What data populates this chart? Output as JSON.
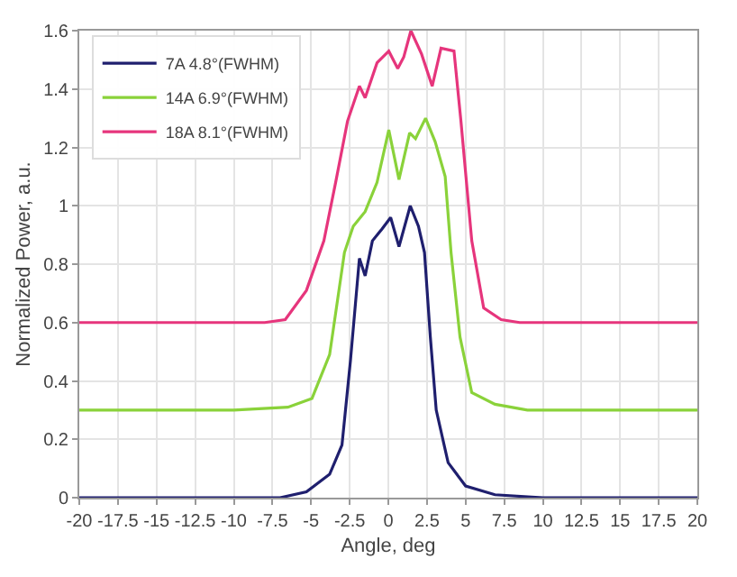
{
  "chart_data": {
    "type": "line",
    "xlabel": "Angle, deg",
    "ylabel": "Normalized Power, a.u.",
    "xlim": [
      -20,
      20
    ],
    "ylim": [
      0,
      1.6
    ],
    "xticks": [
      -20,
      -17.5,
      -15,
      -12.5,
      -10,
      -7.5,
      -5,
      -2.5,
      0,
      2.5,
      5,
      7.5,
      10,
      12.5,
      15,
      17.5,
      20
    ],
    "yticks": [
      0,
      0.2,
      0.4,
      0.6,
      0.8,
      1,
      1.2,
      1.4,
      1.6
    ],
    "grid": true,
    "legend": "top left",
    "marker": "none",
    "line_style": "solid",
    "series": [
      {
        "name": "7A 4.8°(FWHM)",
        "color": "#1f1f6e",
        "x": [
          -20,
          -10,
          -7,
          -5.3,
          -3.8,
          -3.0,
          -2.45,
          -1.87,
          -1.5,
          -1.03,
          -0.42,
          0.15,
          0.69,
          1.42,
          1.95,
          2.34,
          2.72,
          3.1,
          3.87,
          5.0,
          6.9,
          10,
          20
        ],
        "values": [
          0,
          0,
          0,
          0.02,
          0.08,
          0.18,
          0.47,
          0.82,
          0.76,
          0.88,
          0.92,
          0.96,
          0.86,
          1.0,
          0.93,
          0.84,
          0.55,
          0.3,
          0.12,
          0.04,
          0.01,
          0,
          0
        ]
      },
      {
        "name": "14A 6.9°(FWHM)",
        "color": "#8ad23a",
        "x": [
          -20,
          -10,
          -6.5,
          -4.94,
          -3.8,
          -2.84,
          -2.27,
          -1.5,
          -0.73,
          0.03,
          0.69,
          1.38,
          1.76,
          2.41,
          3.03,
          3.68,
          4.06,
          4.64,
          5.4,
          6.9,
          9,
          20
        ],
        "values": [
          0.3,
          0.3,
          0.31,
          0.34,
          0.49,
          0.84,
          0.93,
          0.98,
          1.08,
          1.26,
          1.09,
          1.25,
          1.23,
          1.3,
          1.22,
          1.1,
          0.84,
          0.55,
          0.36,
          0.32,
          0.3,
          0.3
        ]
      },
      {
        "name": "18A 8.1°(FWHM)",
        "color": "#e6357c",
        "x": [
          -20,
          -8,
          -6.67,
          -5.3,
          -4.17,
          -3.41,
          -2.64,
          -1.87,
          -1.5,
          -0.73,
          0.03,
          0.61,
          1.0,
          1.46,
          2.15,
          2.84,
          3.41,
          4.25,
          4.7,
          5.4,
          6.17,
          7.3,
          8.5,
          20
        ],
        "values": [
          0.6,
          0.6,
          0.61,
          0.71,
          0.88,
          1.08,
          1.29,
          1.41,
          1.37,
          1.49,
          1.53,
          1.47,
          1.51,
          1.6,
          1.52,
          1.41,
          1.54,
          1.53,
          1.29,
          0.88,
          0.65,
          0.61,
          0.6,
          0.6
        ]
      }
    ]
  }
}
